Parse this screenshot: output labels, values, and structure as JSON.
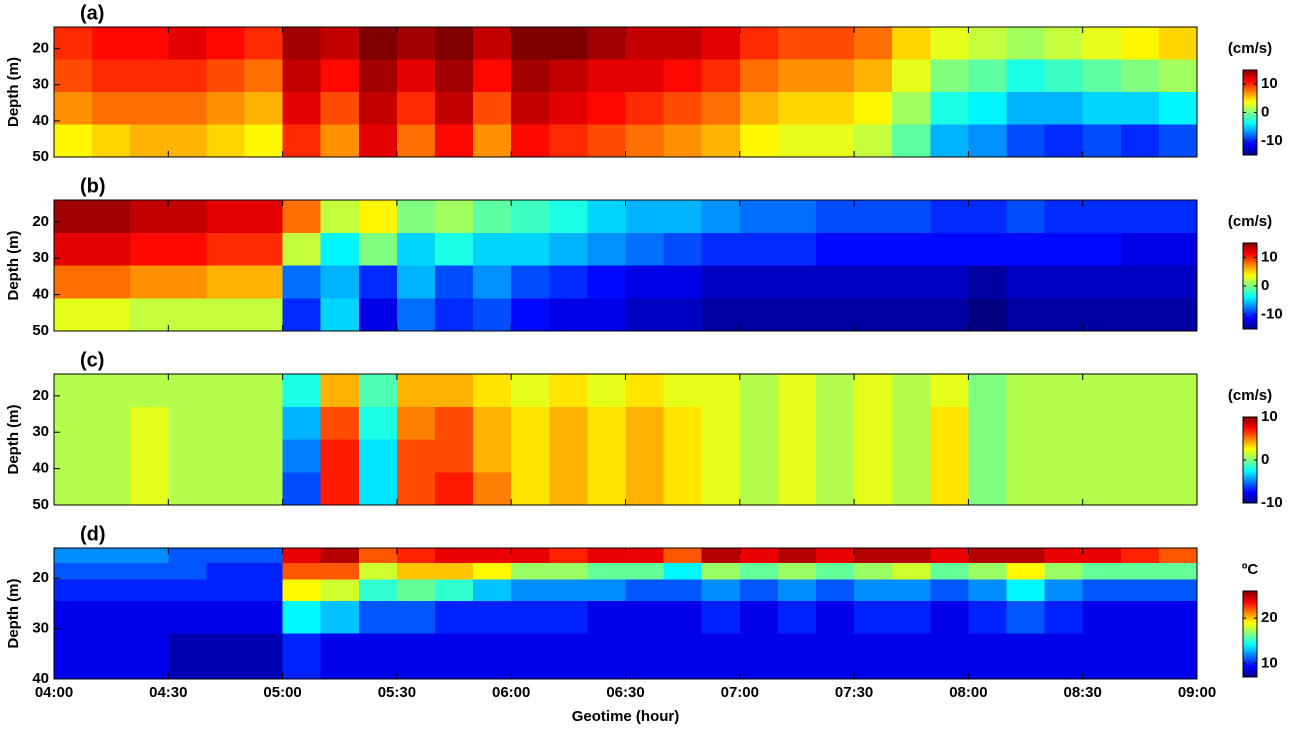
{
  "chart_data": [
    {
      "type": "heatmap",
      "title": "(a)",
      "ylabel": "Depth (m)",
      "colorbar_label": "(cm/s)",
      "x": [
        245,
        255,
        265,
        275,
        285,
        295,
        305,
        315,
        325,
        335,
        345,
        355,
        365,
        375,
        385,
        395,
        405,
        415,
        425,
        435,
        445,
        455,
        465,
        475,
        485,
        495,
        505,
        515,
        525,
        535
      ],
      "y": [
        18.5,
        27.5,
        36.5,
        45.5
      ],
      "z": [
        [
          10,
          11,
          11,
          12,
          11,
          10,
          14,
          13,
          15,
          14,
          15,
          13,
          15,
          15,
          14,
          13,
          13,
          12,
          10,
          9,
          9,
          8,
          5,
          3,
          2,
          1,
          2,
          3,
          4,
          5
        ],
        [
          9,
          10,
          10,
          10,
          9,
          8,
          13,
          11,
          14,
          12,
          14,
          11,
          14,
          13,
          12,
          12,
          11,
          10,
          8,
          7,
          7,
          6,
          3,
          0,
          -1,
          -3,
          -2,
          -1,
          0,
          1
        ],
        [
          7,
          8,
          8,
          8,
          7,
          6,
          12,
          9,
          13,
          10,
          13,
          9,
          13,
          12,
          11,
          10,
          9,
          8,
          6,
          5,
          5,
          4,
          1,
          -3,
          -4,
          -6,
          -6,
          -5,
          -5,
          -4
        ],
        [
          4,
          5,
          6,
          6,
          5,
          4,
          10,
          7,
          12,
          8,
          11,
          7,
          11,
          10,
          9,
          8,
          7,
          6,
          4,
          3,
          3,
          2,
          -1,
          -6,
          -7,
          -9,
          -10,
          -9,
          -10,
          -9
        ]
      ],
      "xlim": [
        240,
        540
      ],
      "xticks": [
        240,
        270,
        300,
        330,
        360,
        390,
        420,
        450,
        480,
        510,
        540
      ],
      "ylim": [
        14,
        50
      ],
      "yticks": [
        20,
        30,
        40,
        50
      ],
      "y_inverted": true,
      "clim": [
        -15,
        15
      ],
      "cticks": [
        -10,
        0,
        10
      ],
      "colormap": "jet"
    },
    {
      "type": "heatmap",
      "title": "(b)",
      "ylabel": "Depth (m)",
      "colorbar_label": "(cm/s)",
      "x": [
        245,
        255,
        265,
        275,
        285,
        295,
        305,
        315,
        325,
        335,
        345,
        355,
        365,
        375,
        385,
        395,
        405,
        415,
        425,
        435,
        445,
        455,
        465,
        475,
        485,
        495,
        505,
        515,
        525,
        535
      ],
      "y": [
        18.5,
        27.5,
        36.5,
        45.5
      ],
      "z": [
        [
          14,
          14,
          13,
          13,
          12,
          12,
          8,
          2,
          4,
          0,
          1,
          -1,
          -2,
          -3,
          -5,
          -6,
          -6,
          -7,
          -8,
          -8,
          -9,
          -9,
          -9,
          -10,
          -10,
          -9,
          -10,
          -10,
          -10,
          -10
        ],
        [
          12,
          12,
          11,
          11,
          10,
          10,
          2,
          -4,
          0,
          -5,
          -3,
          -5,
          -5,
          -6,
          -7,
          -8,
          -9,
          -10,
          -10,
          -10,
          -11,
          -11,
          -11,
          -11,
          -11,
          -11,
          -11,
          -11,
          -12,
          -12
        ],
        [
          8,
          8,
          7,
          7,
          6,
          6,
          -8,
          -6,
          -10,
          -6,
          -9,
          -7,
          -9,
          -10,
          -11,
          -12,
          -12,
          -13,
          -13,
          -13,
          -13,
          -13,
          -13,
          -13,
          -14,
          -13,
          -13,
          -13,
          -13,
          -13
        ],
        [
          3,
          3,
          2,
          2,
          2,
          2,
          -10,
          -5,
          -12,
          -8,
          -10,
          -9,
          -11,
          -12,
          -12,
          -13,
          -13,
          -14,
          -14,
          -14,
          -14,
          -14,
          -14,
          -14,
          -15,
          -14,
          -14,
          -14,
          -14,
          -14
        ]
      ],
      "xlim": [
        240,
        540
      ],
      "xticks": [
        240,
        270,
        300,
        330,
        360,
        390,
        420,
        450,
        480,
        510,
        540
      ],
      "ylim": [
        14,
        50
      ],
      "yticks": [
        20,
        30,
        40,
        50
      ],
      "y_inverted": true,
      "clim": [
        -15,
        15
      ],
      "cticks": [
        -10,
        0,
        10
      ],
      "colormap": "jet"
    },
    {
      "type": "heatmap",
      "title": "(c)",
      "ylabel": "Depth (m)",
      "colorbar_label": "(cm/s)",
      "x": [
        245,
        255,
        265,
        275,
        285,
        295,
        305,
        315,
        325,
        335,
        345,
        355,
        365,
        375,
        385,
        395,
        405,
        415,
        425,
        435,
        445,
        455,
        465,
        475,
        485,
        495,
        505,
        515,
        525,
        535
      ],
      "y": [
        18.5,
        27.5,
        36.5,
        45.5
      ],
      "z": [
        [
          1,
          1,
          1,
          1,
          1,
          1,
          -2,
          4,
          -1,
          4,
          4,
          3,
          2,
          3,
          2,
          3,
          2,
          2,
          1,
          2,
          1,
          2,
          1,
          2,
          0,
          1,
          1,
          1,
          1,
          1
        ],
        [
          1,
          1,
          2,
          1,
          1,
          1,
          -4,
          6,
          -2,
          5,
          6,
          4,
          3,
          4,
          3,
          4,
          3,
          2,
          1,
          2,
          1,
          2,
          1,
          3,
          0,
          1,
          1,
          1,
          1,
          1
        ],
        [
          1,
          1,
          2,
          1,
          1,
          1,
          -5,
          7,
          -3,
          6,
          6,
          4,
          3,
          4,
          3,
          4,
          3,
          2,
          1,
          2,
          1,
          2,
          1,
          3,
          0,
          1,
          1,
          1,
          1,
          1
        ],
        [
          1,
          1,
          2,
          1,
          1,
          1,
          -6,
          7,
          -3,
          6,
          7,
          5,
          3,
          4,
          3,
          4,
          3,
          2,
          1,
          2,
          1,
          2,
          1,
          3,
          0,
          1,
          1,
          1,
          1,
          1
        ]
      ],
      "xlim": [
        240,
        540
      ],
      "xticks": [
        240,
        270,
        300,
        330,
        360,
        390,
        420,
        450,
        480,
        510,
        540
      ],
      "ylim": [
        14,
        50
      ],
      "yticks": [
        20,
        30,
        40,
        50
      ],
      "y_inverted": true,
      "clim": [
        -10,
        10
      ],
      "cticks": [
        -10,
        0,
        10
      ],
      "colormap": "jet"
    },
    {
      "type": "heatmap",
      "title": "(d)",
      "ylabel": "Depth (m)",
      "xlabel": "Geotime (hour)",
      "colorbar_label": "ºC",
      "x": [
        245,
        255,
        265,
        275,
        285,
        295,
        305,
        315,
        325,
        335,
        345,
        355,
        365,
        375,
        385,
        395,
        405,
        415,
        425,
        435,
        445,
        455,
        465,
        475,
        485,
        495,
        505,
        515,
        525,
        535
      ],
      "y": [
        15.5,
        18.5,
        22,
        27,
        35
      ],
      "z": [
        [
          12,
          12,
          12,
          11,
          11,
          11,
          24,
          25,
          22,
          23,
          24,
          24,
          24,
          23,
          24,
          24,
          22,
          25,
          24,
          25,
          24,
          25,
          25,
          24,
          25,
          25,
          24,
          24,
          23,
          22
        ],
        [
          11,
          11,
          11,
          11,
          10,
          10,
          22,
          22,
          18,
          20,
          20,
          19,
          17,
          17,
          16,
          16,
          14,
          17,
          16,
          17,
          16,
          17,
          18,
          16,
          17,
          19,
          17,
          16,
          16,
          16
        ],
        [
          10,
          10,
          10,
          10,
          10,
          10,
          19,
          18,
          15,
          16,
          15,
          13,
          12,
          12,
          12,
          11,
          11,
          12,
          11,
          12,
          11,
          12,
          12,
          11,
          12,
          14,
          12,
          11,
          11,
          11
        ],
        [
          9,
          9,
          9,
          9,
          9,
          9,
          14,
          13,
          11,
          11,
          10,
          10,
          10,
          10,
          9,
          9,
          9,
          10,
          9,
          10,
          9,
          10,
          10,
          9,
          10,
          11,
          10,
          9,
          9,
          9
        ],
        [
          9,
          9,
          9,
          8,
          8,
          8,
          10,
          9,
          9,
          9,
          9,
          9,
          9,
          9,
          9,
          9,
          9,
          9,
          9,
          9,
          9,
          9,
          9,
          9,
          9,
          9,
          9,
          9,
          9,
          9
        ]
      ],
      "xlim": [
        240,
        540
      ],
      "xticks": [
        {
          "value": 240,
          "label": "04:00"
        },
        {
          "value": 270,
          "label": "04:30"
        },
        {
          "value": 300,
          "label": "05:00"
        },
        {
          "value": 330,
          "label": "05:30"
        },
        {
          "value": 360,
          "label": "06:00"
        },
        {
          "value": 390,
          "label": "06:30"
        },
        {
          "value": 420,
          "label": "07:00"
        },
        {
          "value": 450,
          "label": "07:30"
        },
        {
          "value": 480,
          "label": "08:00"
        },
        {
          "value": 510,
          "label": "08:30"
        },
        {
          "value": 540,
          "label": "09:00"
        }
      ],
      "ylim": [
        14,
        40
      ],
      "yticks": [
        20,
        30,
        40
      ],
      "y_inverted": true,
      "clim": [
        7,
        26
      ],
      "cticks": [
        10,
        20
      ],
      "colormap": "jet"
    }
  ]
}
